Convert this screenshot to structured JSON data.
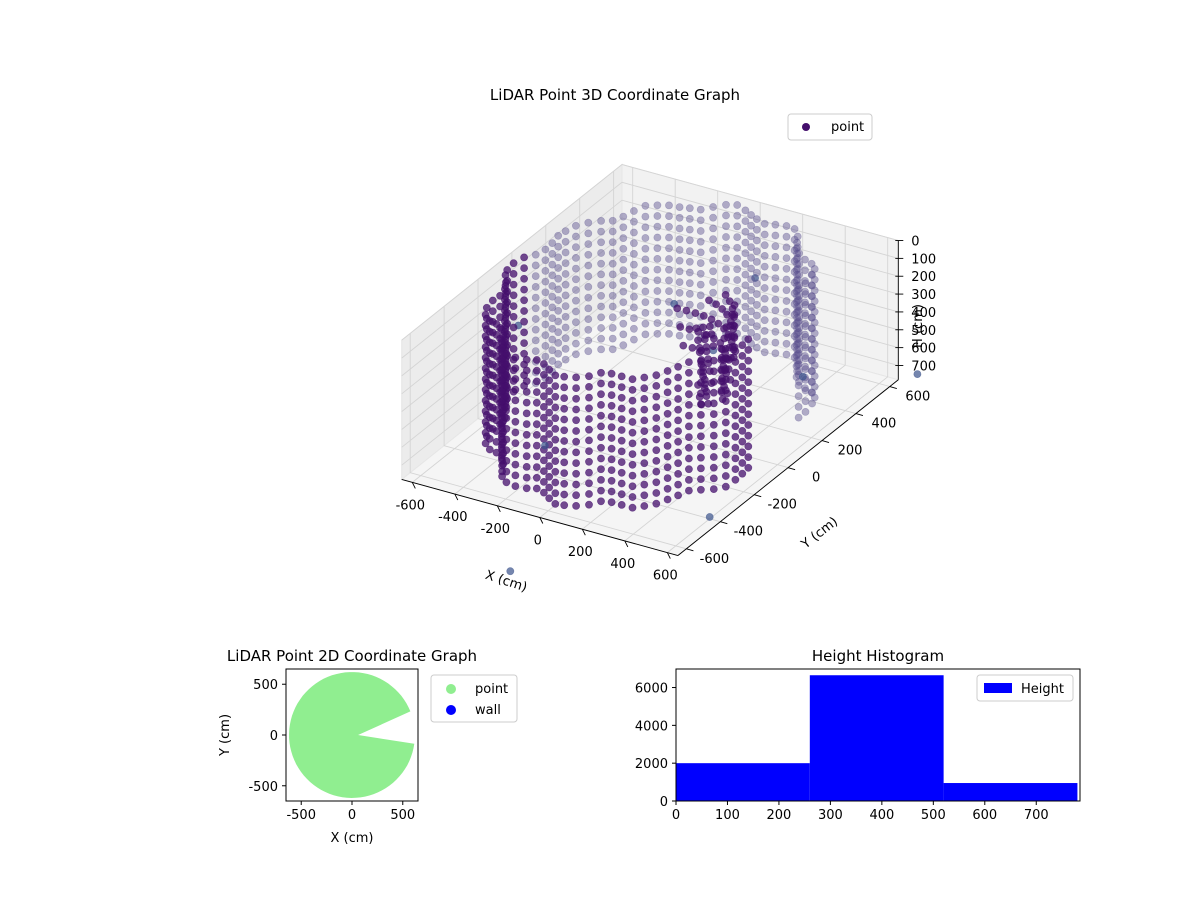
{
  "chart_data": [
    {
      "type": "scatter",
      "projection": "3d",
      "title": "LiDAR Point 3D Coordinate Graph",
      "xlabel": "X (cm)",
      "ylabel": "Y (cm)",
      "zlabel": "H (cm)",
      "xlim": [
        -650,
        650
      ],
      "ylim": [
        -650,
        650
      ],
      "zlim": [
        0,
        780
      ],
      "z_inverted": true,
      "x_ticks": [
        -600,
        -400,
        -200,
        0,
        200,
        400,
        600
      ],
      "y_ticks": [
        -600,
        -400,
        -200,
        0,
        200,
        400,
        600
      ],
      "z_ticks": [
        0,
        100,
        200,
        300,
        400,
        500,
        600,
        700
      ],
      "grid": true,
      "legend_position": "top-right",
      "series": [
        {
          "name": "point",
          "color": "#440f6c",
          "description_shape": "cylindrical wall of points, radius about 600 cm, heights 0-780 cm, with a wedge-shaped opening toward +X",
          "wall_radius": 600,
          "height_range": [
            0,
            780
          ],
          "opening_angle_deg": [
            -8,
            22
          ],
          "sample_points": [
            {
              "x": 0,
              "y": 620,
              "z": 400
            },
            {
              "x": -620,
              "y": 0,
              "z": 400
            },
            {
              "x": 0,
              "y": -620,
              "z": 400
            },
            {
              "x": 600,
              "y": 150,
              "z": 400
            },
            {
              "x": 50,
              "y": 80,
              "z": 120
            },
            {
              "x": 250,
              "y": 60,
              "z": 300
            },
            {
              "x": 140,
              "y": -1000,
              "z": 770
            },
            {
              "x": 600,
              "y": -400,
              "z": 770
            },
            {
              "x": 700,
              "y": 700,
              "z": 770
            }
          ]
        }
      ]
    },
    {
      "type": "scatter",
      "title": "LiDAR Point 2D Coordinate Graph",
      "xlabel": "X (cm)",
      "ylabel": "Y (cm)",
      "xlim": [
        -650,
        650
      ],
      "ylim": [
        -650,
        650
      ],
      "x_ticks": [
        -500,
        0,
        500
      ],
      "y_ticks": [
        -500,
        0,
        500
      ],
      "legend_position": "outside-right",
      "series": [
        {
          "name": "point",
          "color": "#90ee90",
          "shape": "filled disc radius 620 cm with wedge opening toward +X"
        },
        {
          "name": "wall",
          "color": "#0000ff",
          "x": [],
          "y": []
        }
      ]
    },
    {
      "type": "bar",
      "histogram": true,
      "title": "Height Histogram",
      "xlabel": "",
      "ylabel": "",
      "bins": [
        [
          0,
          260
        ],
        [
          260,
          520
        ],
        [
          520,
          780
        ]
      ],
      "values": [
        2000,
        6650,
        950
      ],
      "xlim": [
        0,
        785
      ],
      "ylim": [
        0,
        6980
      ],
      "x_ticks": [
        0,
        100,
        200,
        300,
        400,
        500,
        600,
        700
      ],
      "y_ticks": [
        0,
        2000,
        4000,
        6000
      ],
      "legend_position": "top-right",
      "series": [
        {
          "name": "Height",
          "color": "#0000ff"
        }
      ]
    }
  ]
}
